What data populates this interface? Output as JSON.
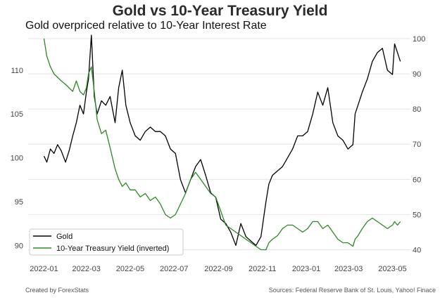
{
  "chart_data": {
    "type": "line",
    "title": "Gold vs 10-Year Treasury Yield",
    "subtitle": "Gold overpriced relative to 10-Year Interest Rate",
    "x_ticks": [
      "2022-01",
      "2022-03",
      "2022-05",
      "2022-07",
      "2022-09",
      "2022-11",
      "2023-01",
      "2023-03",
      "2023-05"
    ],
    "y_left": {
      "ticks": [
        90,
        95,
        100,
        105,
        110
      ],
      "range": [
        88.5,
        114
      ]
    },
    "y_right": {
      "ticks": [
        40,
        50,
        60,
        70,
        80,
        90,
        100
      ],
      "range": [
        37.5,
        101
      ]
    },
    "grid": true,
    "legend_position": "bottom-left",
    "series": [
      {
        "name": "Gold",
        "axis": "left",
        "color": "#000000",
        "x": [
          "2022-01-01",
          "2022-01-05",
          "2022-01-10",
          "2022-01-15",
          "2022-01-20",
          "2022-01-25",
          "2022-01-31",
          "2022-02-05",
          "2022-02-10",
          "2022-02-15",
          "2022-02-20",
          "2022-02-25",
          "2022-03-01",
          "2022-03-04",
          "2022-03-08",
          "2022-03-12",
          "2022-03-16",
          "2022-03-22",
          "2022-03-28",
          "2022-04-03",
          "2022-04-10",
          "2022-04-15",
          "2022-04-20",
          "2022-04-25",
          "2022-05-01",
          "2022-05-08",
          "2022-05-15",
          "2022-05-22",
          "2022-05-29",
          "2022-06-05",
          "2022-06-12",
          "2022-06-19",
          "2022-06-26",
          "2022-07-03",
          "2022-07-10",
          "2022-07-17",
          "2022-07-24",
          "2022-07-31",
          "2022-08-07",
          "2022-08-14",
          "2022-08-21",
          "2022-08-28",
          "2022-09-04",
          "2022-09-11",
          "2022-09-18",
          "2022-09-25",
          "2022-10-02",
          "2022-10-09",
          "2022-10-16",
          "2022-10-23",
          "2022-10-30",
          "2022-11-06",
          "2022-11-10",
          "2022-11-15",
          "2022-11-22",
          "2022-11-29",
          "2022-12-06",
          "2022-12-13",
          "2022-12-20",
          "2022-12-27",
          "2023-01-03",
          "2023-01-10",
          "2023-01-17",
          "2023-01-24",
          "2023-01-31",
          "2023-02-07",
          "2023-02-14",
          "2023-02-21",
          "2023-02-28",
          "2023-03-07",
          "2023-03-10",
          "2023-03-14",
          "2023-03-20",
          "2023-03-27",
          "2023-04-03",
          "2023-04-10",
          "2023-04-17",
          "2023-04-24",
          "2023-05-01",
          "2023-05-04",
          "2023-05-08",
          "2023-05-12"
        ],
        "values": [
          100.2,
          99.5,
          101,
          100.5,
          101.5,
          100.8,
          99.5,
          100.8,
          102.5,
          104,
          106,
          105,
          107.5,
          109,
          114,
          107,
          105,
          106.5,
          106,
          107,
          104,
          108,
          110,
          106,
          104,
          102.5,
          102,
          103,
          103.5,
          103,
          103,
          102.5,
          101,
          100.5,
          97.5,
          96,
          97.5,
          99,
          99.8,
          98,
          96,
          95.5,
          93,
          92.5,
          91.5,
          90,
          92.5,
          91,
          90.5,
          90,
          91,
          95,
          97,
          98,
          98.5,
          99,
          100,
          101,
          102.5,
          102.5,
          103,
          105,
          107.5,
          106,
          108,
          104,
          102.5,
          102,
          101,
          101.5,
          105,
          106,
          107.5,
          109,
          111,
          112,
          112.5,
          110,
          109.5,
          113,
          112,
          111
        ]
      },
      {
        "name": "10-Year Treasury Yield (inverted)",
        "axis": "right",
        "color": "#2a8a22",
        "x": [
          "2022-01-01",
          "2022-01-05",
          "2022-01-10",
          "2022-01-15",
          "2022-01-20",
          "2022-01-25",
          "2022-01-31",
          "2022-02-05",
          "2022-02-10",
          "2022-02-15",
          "2022-02-20",
          "2022-02-25",
          "2022-03-01",
          "2022-03-04",
          "2022-03-08",
          "2022-03-12",
          "2022-03-16",
          "2022-03-22",
          "2022-03-28",
          "2022-04-03",
          "2022-04-10",
          "2022-04-15",
          "2022-04-20",
          "2022-04-25",
          "2022-05-01",
          "2022-05-08",
          "2022-05-15",
          "2022-05-22",
          "2022-05-29",
          "2022-06-05",
          "2022-06-12",
          "2022-06-19",
          "2022-06-26",
          "2022-07-03",
          "2022-07-10",
          "2022-07-17",
          "2022-07-24",
          "2022-07-31",
          "2022-08-07",
          "2022-08-14",
          "2022-08-21",
          "2022-08-28",
          "2022-09-04",
          "2022-09-11",
          "2022-09-18",
          "2022-09-25",
          "2022-10-02",
          "2022-10-09",
          "2022-10-16",
          "2022-10-23",
          "2022-10-30",
          "2022-11-06",
          "2022-11-10",
          "2022-11-15",
          "2022-11-22",
          "2022-11-29",
          "2022-12-06",
          "2022-12-13",
          "2022-12-20",
          "2022-12-27",
          "2023-01-03",
          "2023-01-10",
          "2023-01-17",
          "2023-01-24",
          "2023-01-31",
          "2023-02-07",
          "2023-02-14",
          "2023-02-21",
          "2023-02-28",
          "2023-03-07",
          "2023-03-10",
          "2023-03-14",
          "2023-03-20",
          "2023-03-27",
          "2023-04-03",
          "2023-04-10",
          "2023-04-17",
          "2023-04-24",
          "2023-05-01",
          "2023-05-04",
          "2023-05-08",
          "2023-05-12"
        ],
        "values": [
          100,
          95,
          92,
          90,
          89,
          88,
          87,
          86,
          85,
          88,
          85,
          84,
          86,
          90,
          92,
          85,
          77,
          73,
          74,
          69,
          63,
          60,
          58,
          59,
          57,
          57,
          55,
          56,
          54,
          55,
          53,
          50,
          49,
          50,
          53,
          56,
          60,
          62,
          60,
          58,
          56,
          55,
          51,
          47,
          46,
          45,
          44,
          43,
          42,
          41,
          40,
          40,
          42,
          43,
          44,
          46,
          47,
          47,
          46,
          45,
          46,
          48,
          48,
          46,
          47,
          45,
          43,
          42,
          42,
          41,
          43,
          44,
          46,
          48,
          49,
          48,
          47,
          46,
          47,
          48,
          47,
          48
        ]
      }
    ],
    "annotations": {
      "left": "Created by ForexStats",
      "right": "Sources: Federal Reserve Bank of St. Louis, Yahoo! Finace"
    }
  }
}
